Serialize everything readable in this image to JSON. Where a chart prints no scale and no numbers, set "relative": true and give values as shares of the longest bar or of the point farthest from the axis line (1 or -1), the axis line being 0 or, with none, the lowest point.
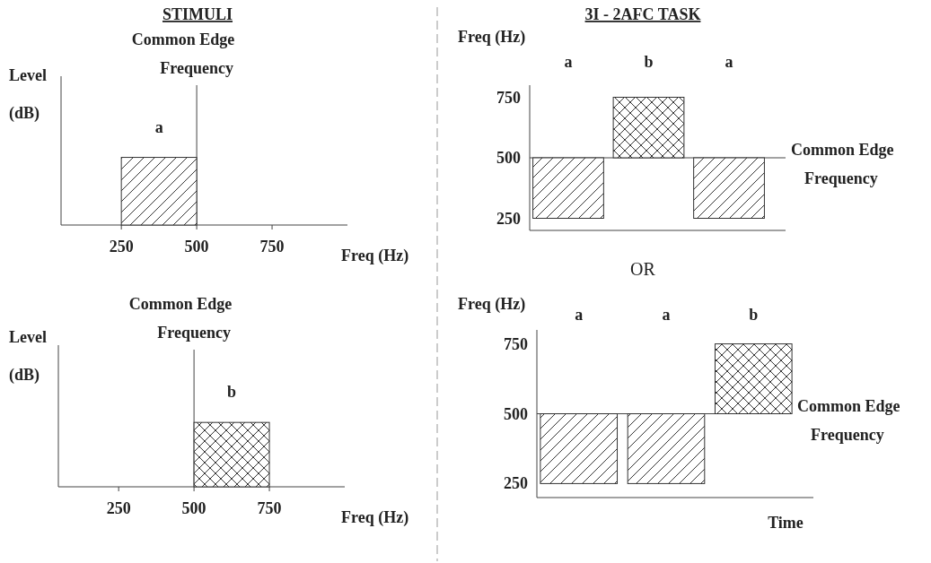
{
  "chart_data": [
    {
      "type": "bar",
      "title": "STIMULI",
      "xlabel": "Freq (Hz)",
      "ylabel": "Level (dB)",
      "relative": true,
      "x": [
        375
      ],
      "series": [
        {
          "name": "a",
          "color": "#333333",
          "values": [
            1
          ]
        }
      ],
      "xlim": [
        50,
        1000
      ],
      "xticks": [
        250,
        500,
        750
      ],
      "ref_lines": [
        {
          "axis": "x",
          "value": 500,
          "label": "Common Edge Frequency"
        }
      ]
    },
    {
      "type": "bar",
      "xlabel": "Freq (Hz)",
      "ylabel": "Level (dB)",
      "relative": true,
      "x": [
        625
      ],
      "series": [
        {
          "name": "b",
          "color": "#333333",
          "values": [
            1
          ]
        }
      ],
      "xlim": [
        50,
        1000
      ],
      "xticks": [
        250,
        500,
        750
      ],
      "ref_lines": [
        {
          "axis": "x",
          "value": 500,
          "label": "Common Edge Frequency"
        }
      ]
    },
    {
      "type": "bar",
      "title": "3I - 2AFC TASK",
      "ylabel": "Freq (Hz)",
      "categories": [
        "a",
        "b",
        "a"
      ],
      "base": [
        250,
        500,
        250
      ],
      "values": [
        250,
        250,
        250
      ],
      "color": "#333333",
      "ylim": [
        200,
        800
      ],
      "yticks": [
        250,
        500,
        750
      ],
      "ref_lines": [
        {
          "axis": "y",
          "value": 500,
          "label": "Common Edge Frequency"
        }
      ]
    },
    {
      "type": "bar",
      "xlabel": "Time",
      "ylabel": "Freq (Hz)",
      "categories": [
        "a",
        "a",
        "b"
      ],
      "base": [
        250,
        250,
        500
      ],
      "values": [
        250,
        250,
        250
      ],
      "color": "#333333",
      "ylim": [
        200,
        800
      ],
      "yticks": [
        250,
        500,
        750
      ],
      "ref_lines": [
        {
          "axis": "y",
          "value": 500,
          "label": "Common Edge Frequency"
        }
      ],
      "annotations": [
        "OR"
      ]
    }
  ]
}
